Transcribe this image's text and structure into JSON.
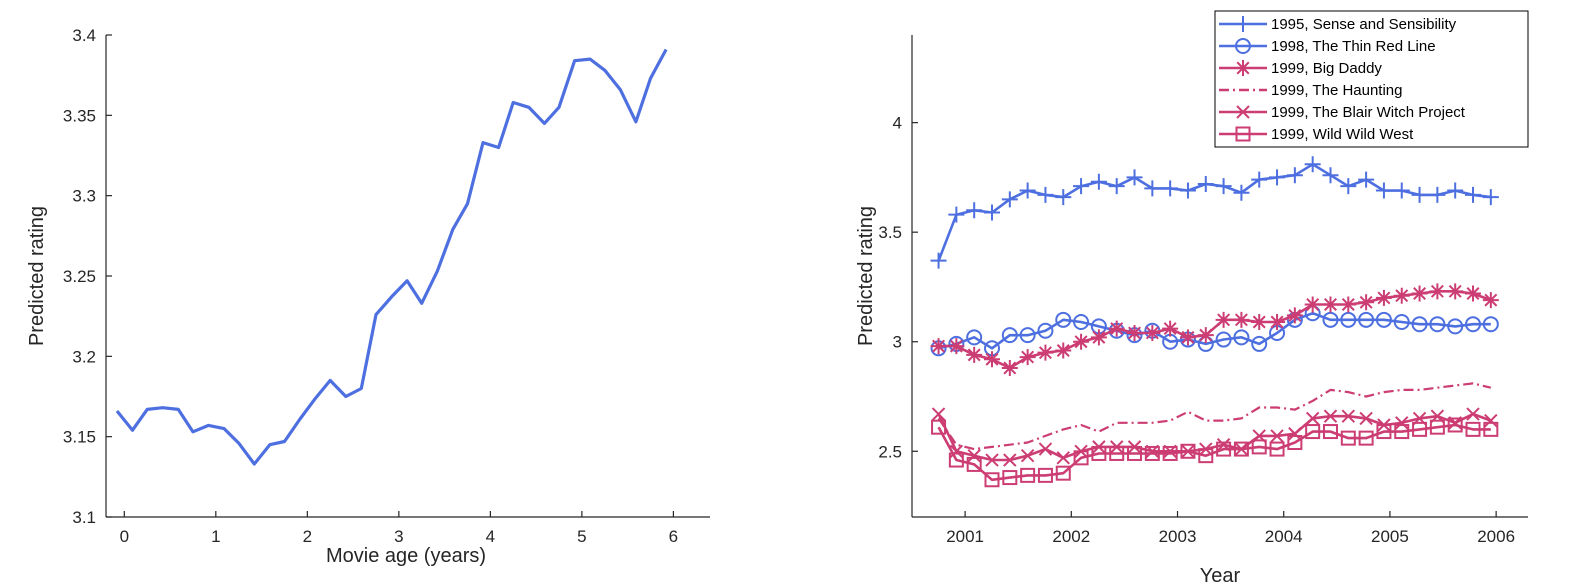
{
  "chart_data": [
    {
      "type": "line",
      "xlabel": "Movie age (years)",
      "ylabel": "Predicted rating",
      "xlim": [
        -0.2,
        6.4
      ],
      "ylim": [
        3.1,
        3.4
      ],
      "xticks": [
        "0",
        "1",
        "2",
        "3",
        "4",
        "5",
        "6"
      ],
      "yticks": [
        "3.1",
        "3.15",
        "3.2",
        "3.25",
        "3.3",
        "3.35",
        "3.4"
      ],
      "grid": false,
      "series": [
        {
          "color": "#4d6fe0",
          "x": [
            -0.08,
            0.09,
            0.25,
            0.42,
            0.59,
            0.75,
            0.92,
            1.09,
            1.25,
            1.42,
            1.59,
            1.75,
            1.92,
            2.09,
            2.25,
            2.42,
            2.59,
            2.75,
            2.92,
            3.09,
            3.25,
            3.42,
            3.59,
            3.75,
            3.92,
            4.09,
            4.25,
            4.42,
            4.59,
            4.75,
            4.92,
            5.09,
            5.25,
            5.42,
            5.59,
            5.75,
            5.92
          ],
          "y": [
            3.166,
            3.154,
            3.167,
            3.168,
            3.167,
            3.153,
            3.157,
            3.155,
            3.146,
            3.133,
            3.145,
            3.147,
            3.161,
            3.174,
            3.185,
            3.175,
            3.18,
            3.226,
            3.237,
            3.247,
            3.233,
            3.253,
            3.279,
            3.295,
            3.333,
            3.33,
            3.358,
            3.355,
            3.345,
            3.355,
            3.384,
            3.385,
            3.378,
            3.366,
            3.346,
            3.373,
            3.391
          ]
        }
      ]
    },
    {
      "type": "line",
      "xlabel": "Year",
      "ylabel": "Predicted rating",
      "xlim": [
        2000.5,
        2006.3
      ],
      "ylim": [
        2.2,
        4.4
      ],
      "xticks": [
        "2001",
        "2002",
        "2003",
        "2004",
        "2005",
        "2006"
      ],
      "yticks": [
        "2.5",
        "3",
        "3.5",
        "4"
      ],
      "grid": false,
      "legend_position": "top-right",
      "series": [
        {
          "name": "1995, Sense and Sensibility",
          "color": "#4d6fe0",
          "marker": "plus",
          "dash": "solid",
          "y": [
            3.37,
            3.58,
            3.6,
            3.59,
            3.65,
            3.69,
            3.67,
            3.66,
            3.71,
            3.73,
            3.71,
            3.75,
            3.7,
            3.7,
            3.69,
            3.72,
            3.71,
            3.68,
            3.74,
            3.75,
            3.76,
            3.81,
            3.76,
            3.71,
            3.74,
            3.69,
            3.69,
            3.67,
            3.67,
            3.69,
            3.67,
            3.66
          ]
        },
        {
          "name": "1998, The Thin Red Line",
          "color": "#4d6fe0",
          "marker": "circle",
          "dash": "solid",
          "y": [
            2.97,
            2.99,
            3.02,
            2.97,
            3.03,
            3.03,
            3.05,
            3.1,
            3.09,
            3.07,
            3.05,
            3.03,
            3.05,
            3.0,
            3.01,
            2.99,
            3.01,
            3.02,
            2.99,
            3.04,
            3.1,
            3.13,
            3.1,
            3.1,
            3.1,
            3.1,
            3.09,
            3.08,
            3.08,
            3.07,
            3.08,
            3.08
          ]
        },
        {
          "name": "1999, Big Daddy",
          "color": "#cc3d73",
          "marker": "asterisk",
          "dash": "solid",
          "y": [
            2.98,
            2.98,
            2.94,
            2.92,
            2.88,
            2.93,
            2.95,
            2.96,
            3.0,
            3.02,
            3.06,
            3.04,
            3.04,
            3.06,
            3.02,
            3.03,
            3.1,
            3.1,
            3.09,
            3.09,
            3.12,
            3.17,
            3.17,
            3.17,
            3.18,
            3.2,
            3.21,
            3.22,
            3.23,
            3.23,
            3.22,
            3.19
          ]
        },
        {
          "name": "1999, The Haunting",
          "color": "#cc3d73",
          "marker": "none",
          "dash": "dashdot",
          "y": [
            2.65,
            2.53,
            2.51,
            2.52,
            2.53,
            2.54,
            2.57,
            2.6,
            2.62,
            2.59,
            2.63,
            2.63,
            2.63,
            2.64,
            2.68,
            2.64,
            2.64,
            2.65,
            2.7,
            2.7,
            2.69,
            2.73,
            2.78,
            2.77,
            2.75,
            2.77,
            2.78,
            2.78,
            2.79,
            2.8,
            2.81,
            2.79
          ]
        },
        {
          "name": "1999, The Blair Witch Project",
          "color": "#cc3d73",
          "marker": "x",
          "dash": "solid",
          "y": [
            2.67,
            2.5,
            2.48,
            2.46,
            2.46,
            2.48,
            2.51,
            2.47,
            2.5,
            2.52,
            2.52,
            2.52,
            2.5,
            2.5,
            2.5,
            2.51,
            2.53,
            2.51,
            2.57,
            2.57,
            2.58,
            2.65,
            2.66,
            2.66,
            2.65,
            2.62,
            2.63,
            2.65,
            2.66,
            2.63,
            2.67,
            2.64
          ]
        },
        {
          "name": "1999, Wild Wild West",
          "color": "#cc3d73",
          "marker": "square",
          "dash": "solid",
          "y": [
            2.61,
            2.46,
            2.44,
            2.37,
            2.38,
            2.39,
            2.39,
            2.4,
            2.47,
            2.49,
            2.49,
            2.49,
            2.49,
            2.49,
            2.5,
            2.48,
            2.51,
            2.51,
            2.52,
            2.51,
            2.54,
            2.59,
            2.59,
            2.56,
            2.56,
            2.59,
            2.59,
            2.6,
            2.61,
            2.62,
            2.6,
            2.6
          ]
        }
      ]
    }
  ]
}
